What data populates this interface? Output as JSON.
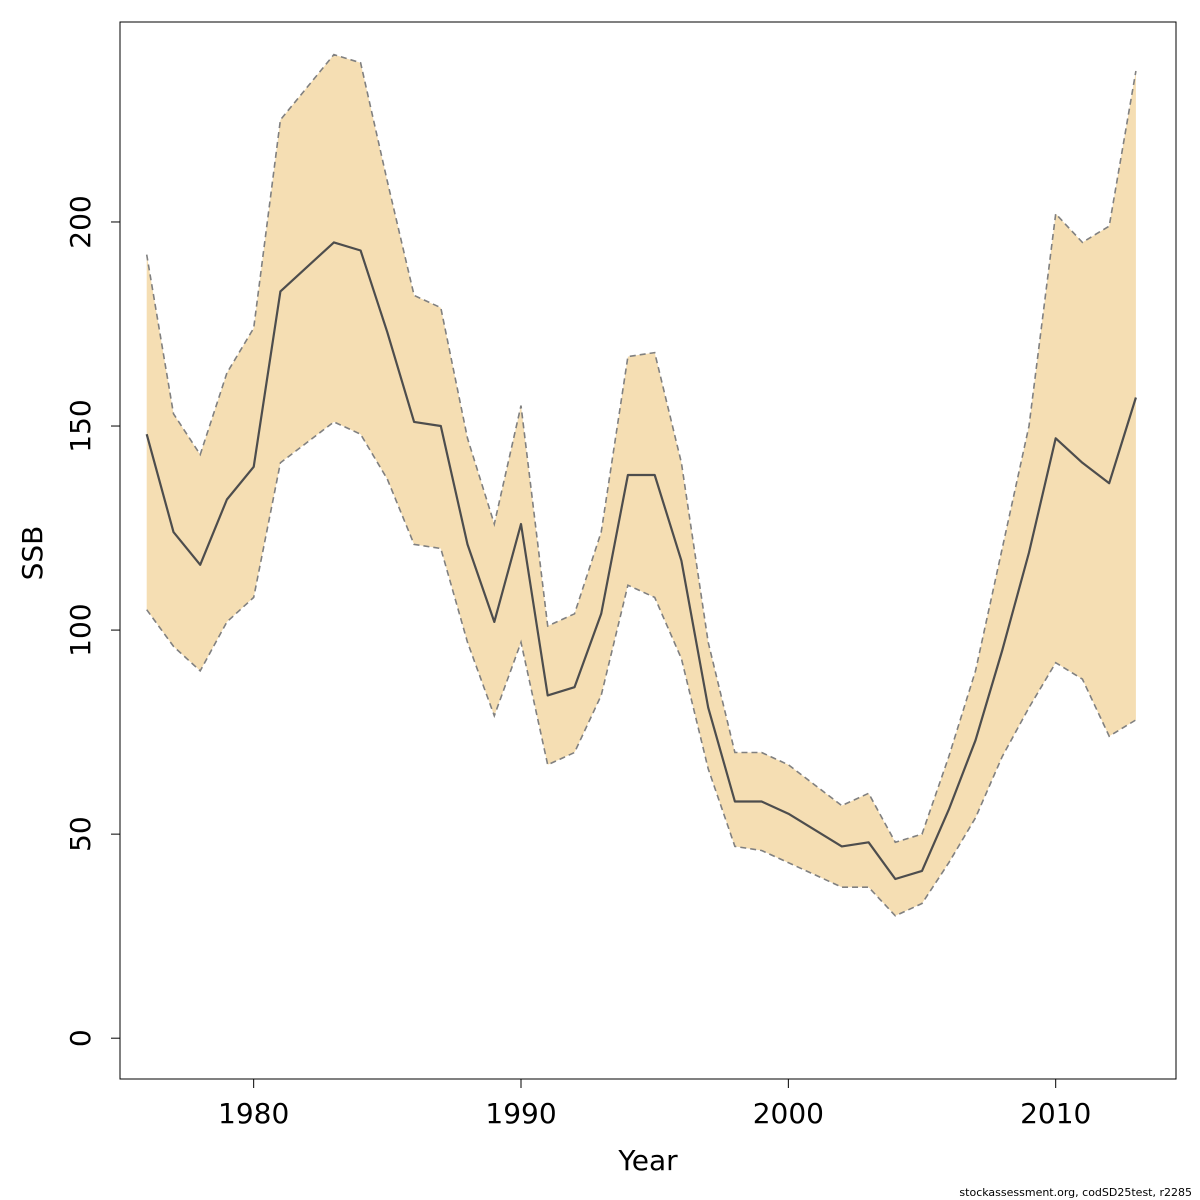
{
  "chart_data": {
    "type": "area",
    "xlabel": "Year",
    "ylabel": "SSB",
    "xlim": [
      1975,
      2014.5
    ],
    "ylim": [
      -10,
      249
    ],
    "xticks": [
      1980,
      1990,
      2000,
      2010
    ],
    "xtick_labels": [
      "1980",
      "1990",
      "2000",
      "2010"
    ],
    "yticks": [
      0,
      50,
      100,
      150,
      200
    ],
    "ytick_labels": [
      "0",
      "50",
      "100",
      "150",
      "200"
    ],
    "grid": false,
    "colors": {
      "band": "#f5deb3",
      "line": "#4d4d4d",
      "bound": "#808080"
    },
    "x": [
      1976,
      1977,
      1978,
      1979,
      1980,
      1981,
      1982,
      1983,
      1984,
      1985,
      1986,
      1987,
      1988,
      1989,
      1990,
      1991,
      1992,
      1993,
      1994,
      1995,
      1996,
      1997,
      1998,
      1999,
      2000,
      2001,
      2002,
      2003,
      2004,
      2005,
      2006,
      2007,
      2008,
      2009,
      2010,
      2011,
      2012,
      2013
    ],
    "series": [
      {
        "role": "estimate",
        "values": [
          148,
          124,
          116,
          132,
          140,
          183,
          189,
          195,
          193,
          173,
          151,
          150,
          121,
          102,
          126,
          84,
          86,
          104,
          138,
          138,
          117,
          81,
          58,
          58,
          55,
          51,
          47,
          48,
          39,
          41,
          56,
          73,
          95,
          119,
          147,
          141,
          136,
          157
        ]
      },
      {
        "role": "upper",
        "values": [
          192,
          153,
          143,
          163,
          174,
          225,
          233,
          241,
          239,
          210,
          182,
          179,
          147,
          126,
          155,
          101,
          104,
          124,
          167,
          168,
          141,
          97,
          70,
          70,
          67,
          62,
          57,
          60,
          48,
          50,
          69,
          90,
          120,
          150,
          202,
          195,
          199,
          237
        ]
      },
      {
        "role": "lower",
        "values": [
          105,
          96,
          90,
          102,
          108,
          141,
          146,
          151,
          148,
          137,
          121,
          120,
          97,
          79,
          97,
          67,
          70,
          84,
          111,
          108,
          93,
          66,
          47,
          46,
          43,
          40,
          37,
          37,
          30,
          33,
          43,
          54,
          69,
          81,
          92,
          88,
          74,
          78
        ]
      }
    ]
  },
  "footer": {
    "note": "stockassessment.org, codSD25test, r2285"
  }
}
